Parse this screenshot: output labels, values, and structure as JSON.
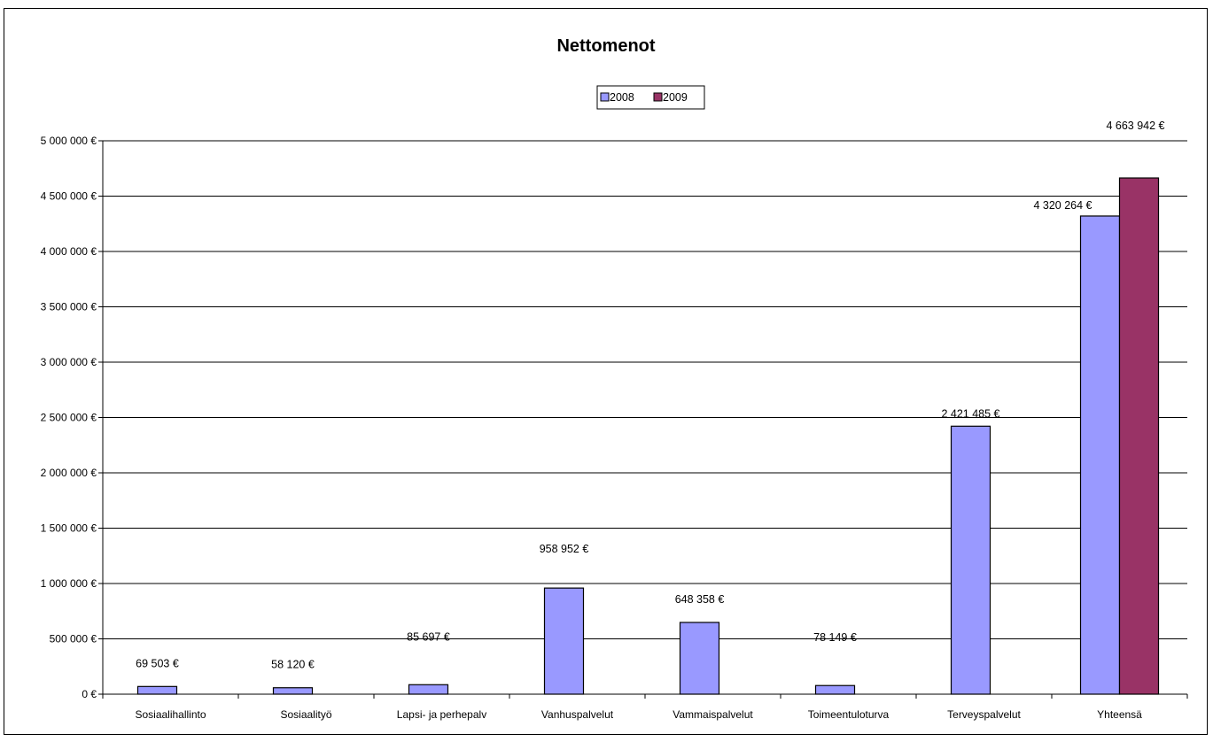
{
  "chart_data": {
    "type": "bar",
    "title": "Nettomenot",
    "xlabel": "",
    "ylabel": "",
    "categories": [
      "Sosiaalihallinto",
      "Sosiaalityö",
      "Lapsi- ja perhepalv",
      "Vanhuspalvelut",
      "Vammaispalvelut",
      "Toimeentuloturva",
      "Terveyspalvelut",
      "Yhteensä"
    ],
    "series": [
      {
        "name": "2008",
        "color": "#9999ff",
        "values": [
          69503,
          58120,
          85697,
          958952,
          648358,
          78149,
          2421485,
          4320264
        ],
        "labels": [
          "69 503 €",
          "58 120 €",
          "85 697 €",
          "958 952 €",
          "648 358 €",
          "78 149 €",
          "2 421 485 €",
          "4 320 264 €"
        ]
      },
      {
        "name": "2009",
        "color": "#993366",
        "values": [
          null,
          null,
          null,
          null,
          null,
          null,
          null,
          4663942
        ],
        "labels": [
          "",
          "",
          "",
          "",
          "",
          "",
          "",
          "4 663 942 €"
        ]
      }
    ],
    "ylim": [
      0,
      5000000
    ],
    "yticks": [
      0,
      500000,
      1000000,
      1500000,
      2000000,
      2500000,
      3000000,
      3500000,
      4000000,
      4500000,
      5000000
    ],
    "ytick_labels": [
      "0 €",
      "500 000 €",
      "1 000 000 €",
      "1 500 000 €",
      "2 000 000 €",
      "2 500 000 €",
      "3 000 000 €",
      "3 500 000 €",
      "4 000 000 €",
      "4 500 000 €",
      "5 000 000 €"
    ],
    "grid": true,
    "legend": "top-center"
  }
}
